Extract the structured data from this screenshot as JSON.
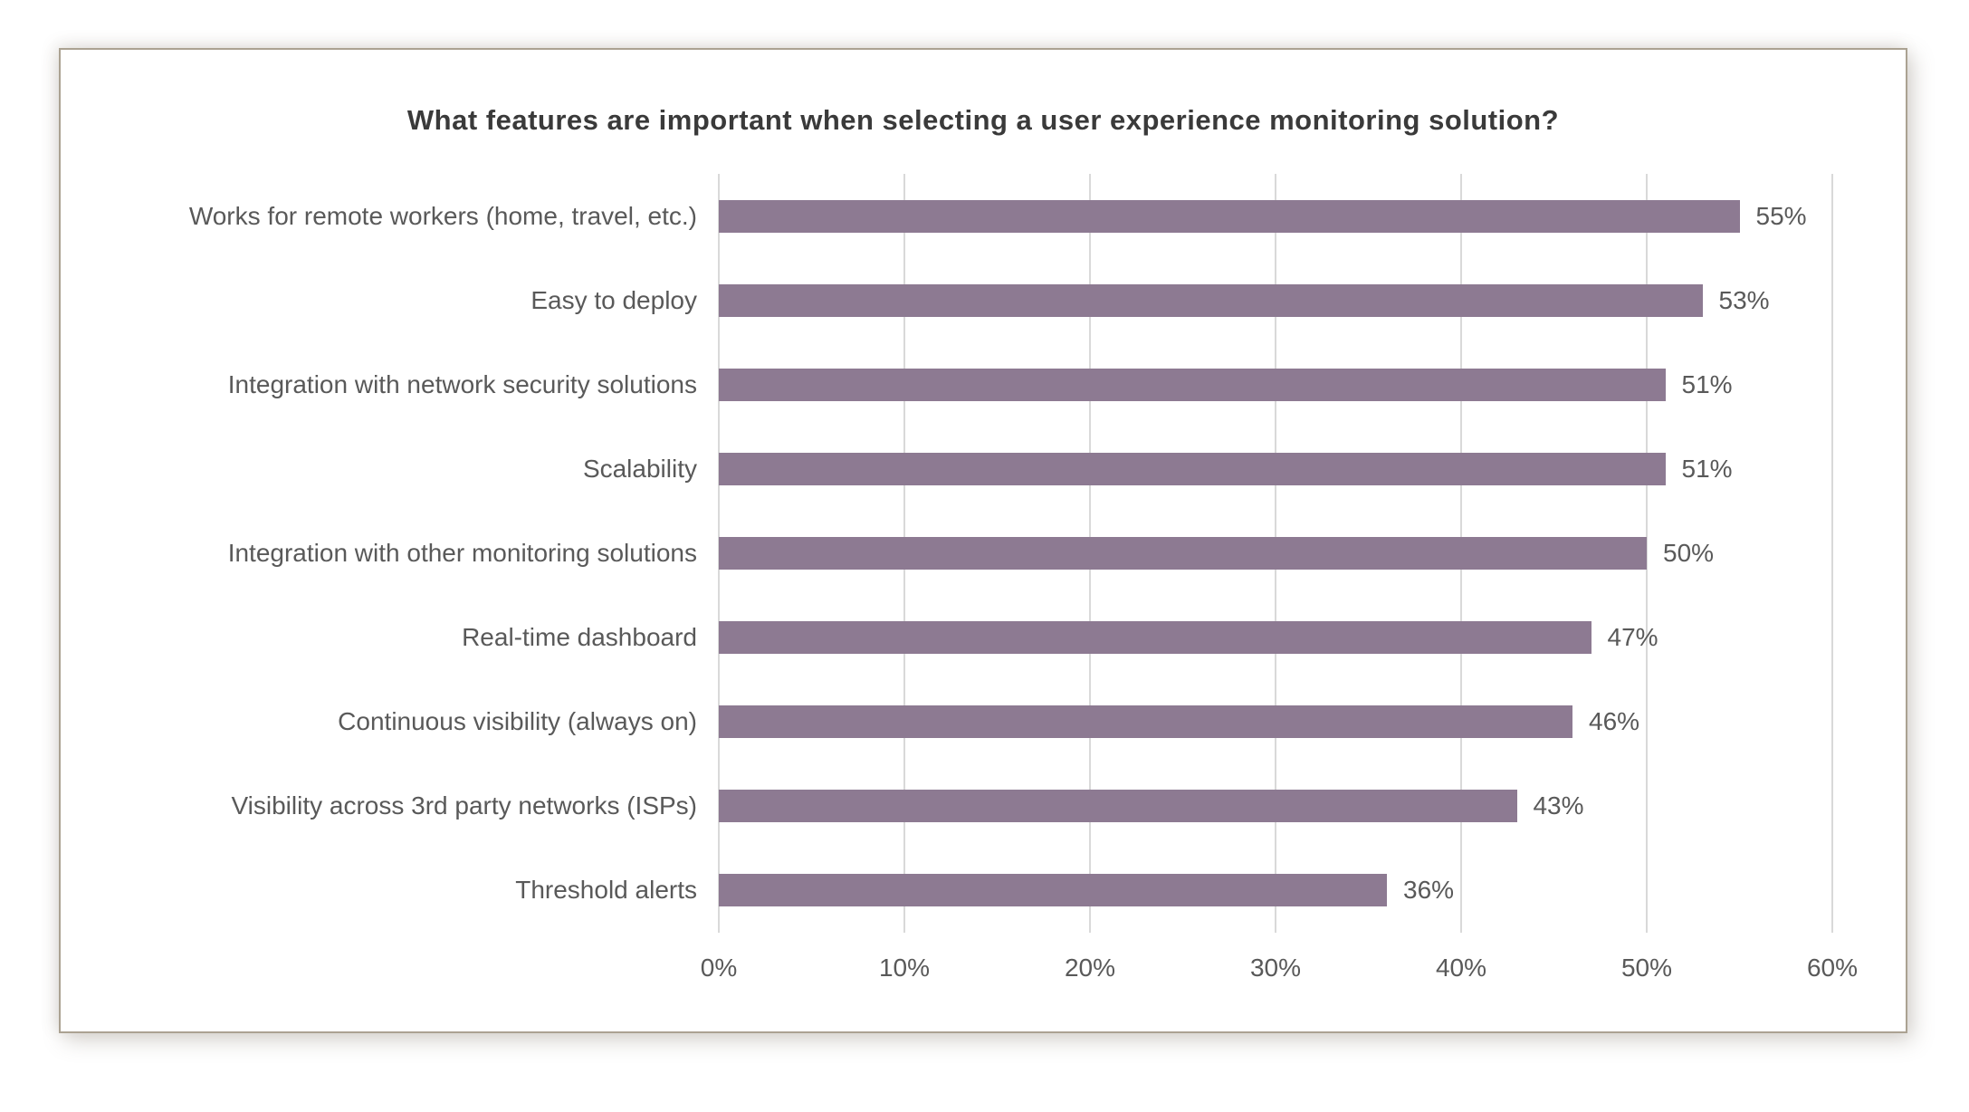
{
  "chart_data": {
    "type": "bar",
    "orientation": "horizontal",
    "title": "What features are important when selecting a user experience monitoring solution?",
    "categories": [
      "Works for remote workers (home, travel, etc.)",
      "Easy to deploy",
      "Integration with network security solutions",
      "Scalability",
      "Integration with other monitoring solutions",
      "Real-time dashboard",
      "Continuous visibility (always on)",
      "Visibility across 3rd party networks (ISPs)",
      "Threshold alerts"
    ],
    "values": [
      55,
      53,
      51,
      51,
      50,
      47,
      46,
      43,
      36
    ],
    "value_labels": [
      "55%",
      "53%",
      "51%",
      "51%",
      "50%",
      "47%",
      "46%",
      "43%",
      "36%"
    ],
    "xlabel": "",
    "ylabel": "",
    "xlim": [
      0,
      60
    ],
    "x_ticks": [
      "0%",
      "10%",
      "20%",
      "30%",
      "40%",
      "50%",
      "60%"
    ],
    "x_tick_values": [
      0,
      10,
      20,
      30,
      40,
      50,
      60
    ],
    "grid": true,
    "legend": false,
    "colors": {
      "bar": "#8d7a92",
      "gridline": "#d9d9d9",
      "title_text": "#3a3a3a",
      "label_text": "#595959",
      "card_border": "#aba292",
      "background": "#ffffff"
    }
  }
}
